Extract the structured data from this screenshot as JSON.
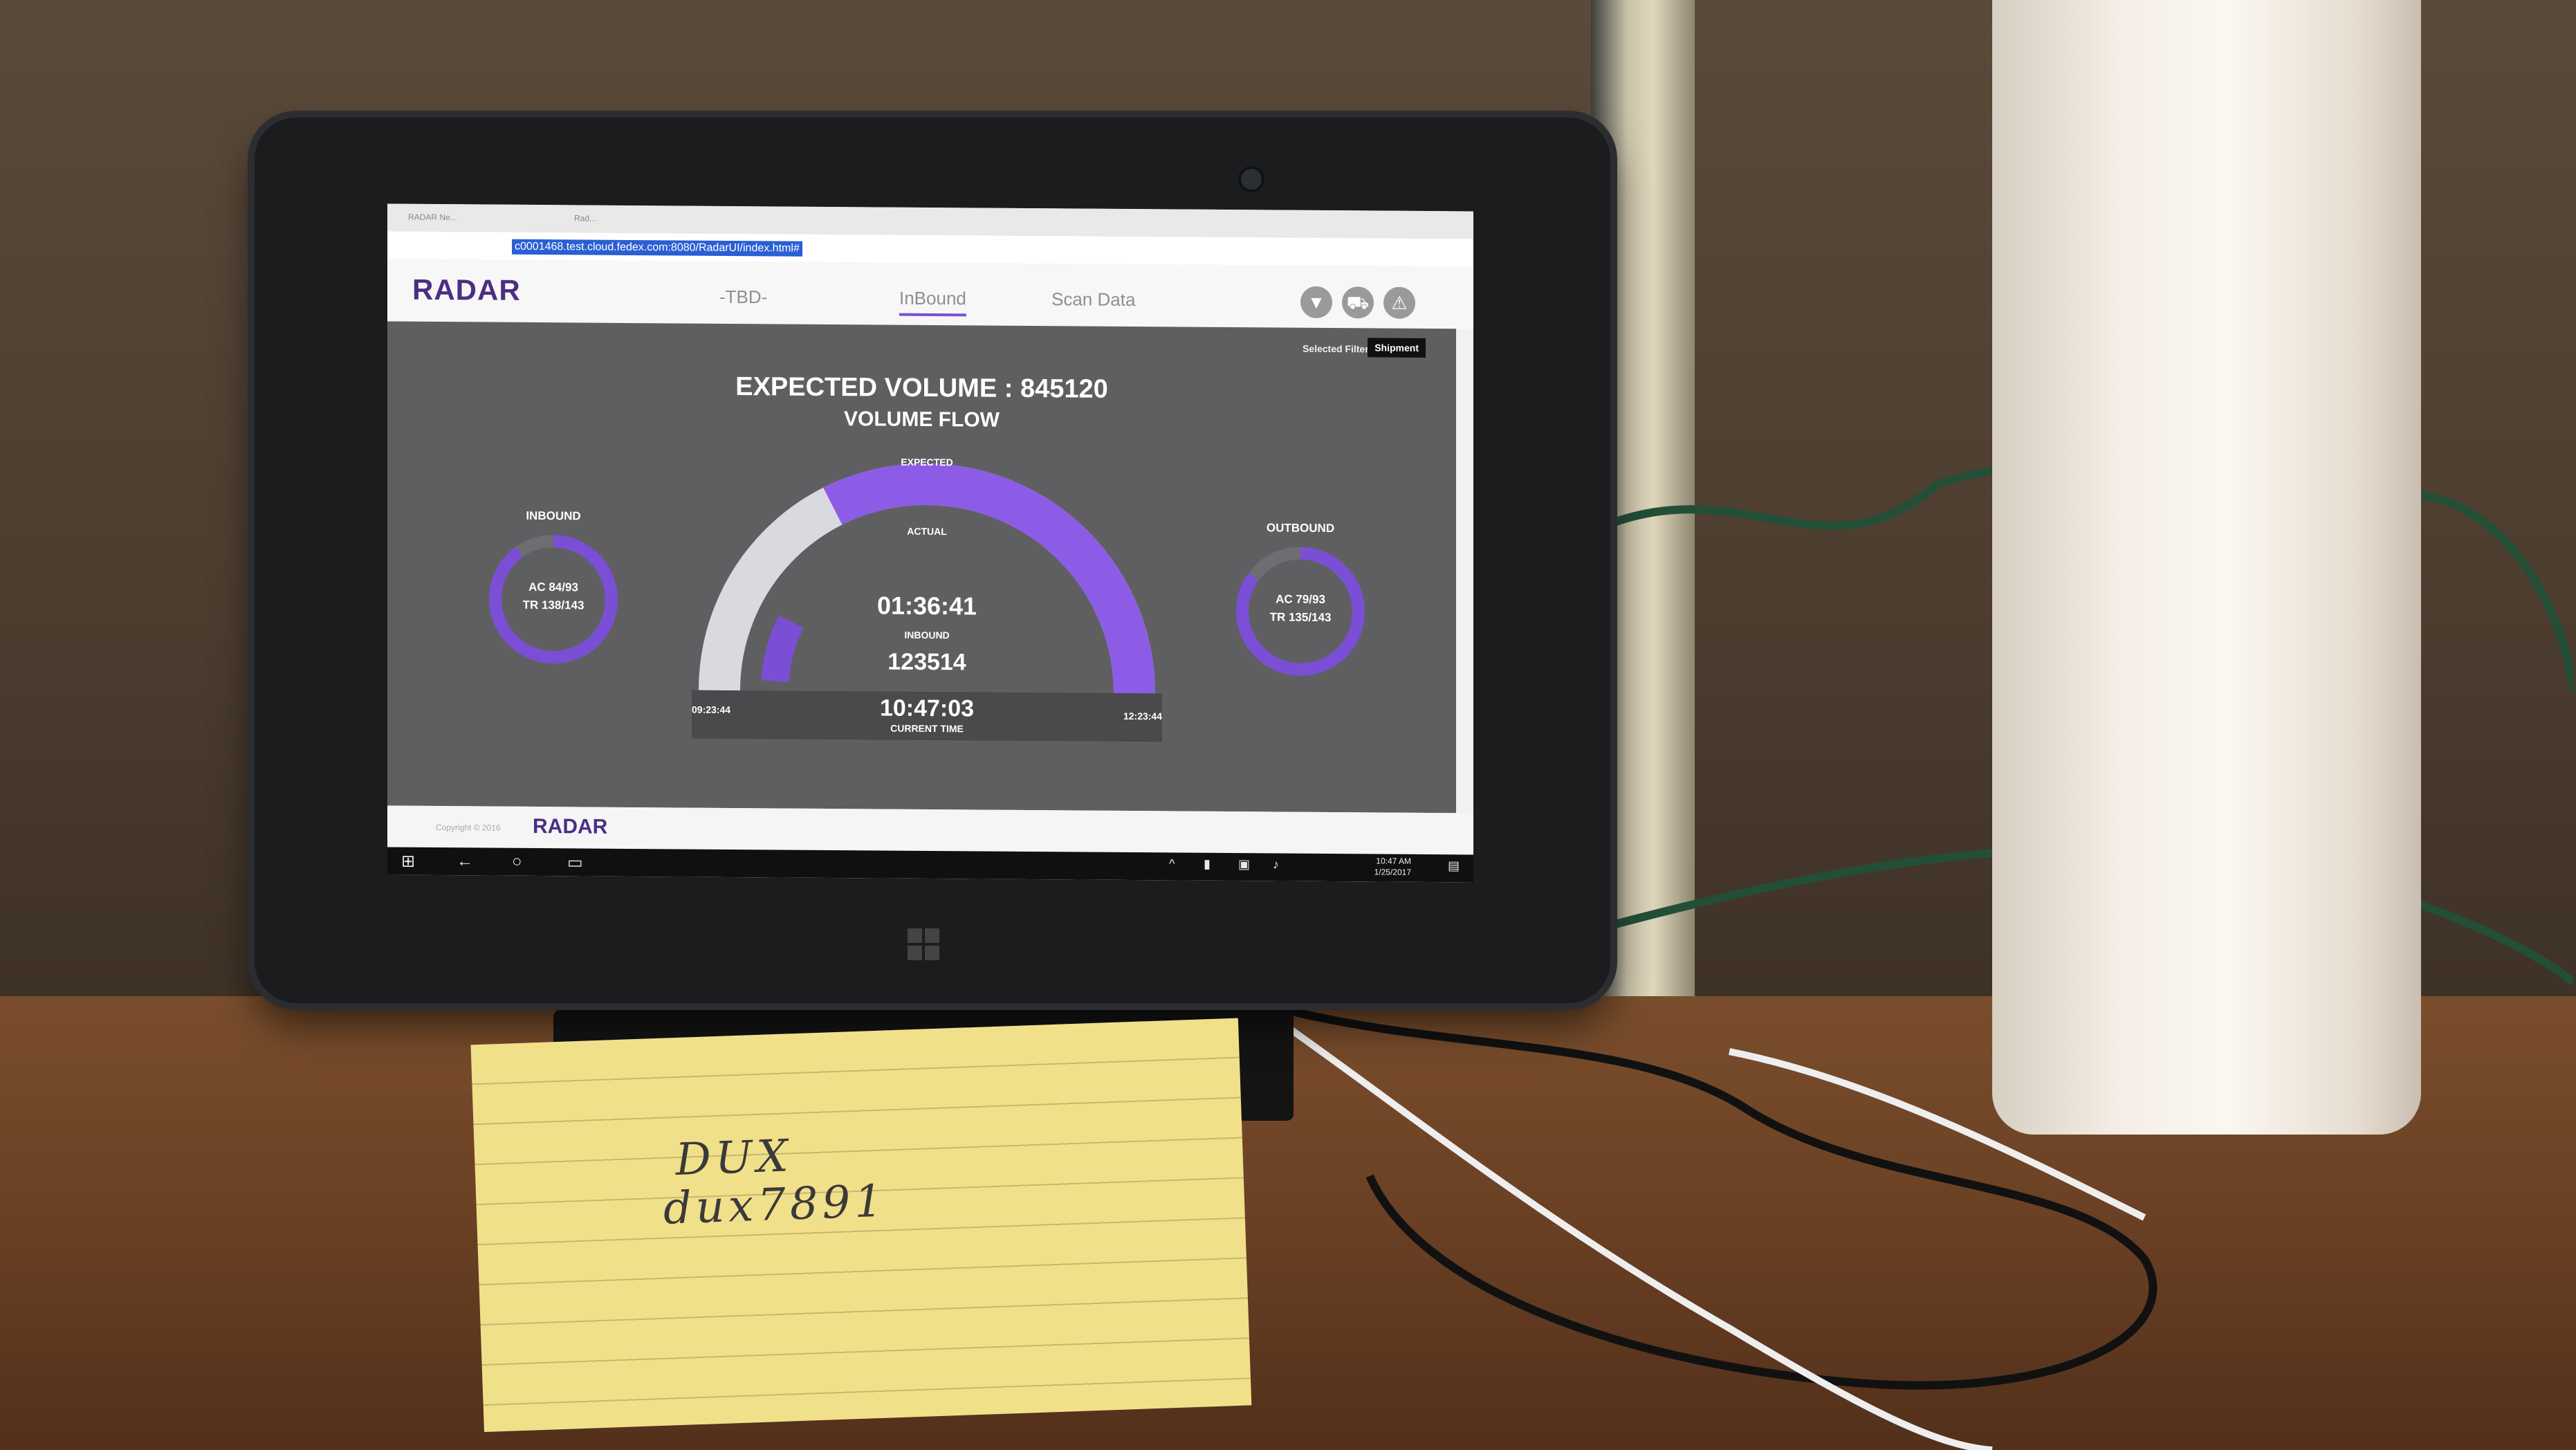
{
  "browser": {
    "tabs": [
      "RADAR Ne...",
      "Rad...",
      ""
    ],
    "url": "c0001468.test.cloud.fedex.com:8080/RadarUI/index.html#"
  },
  "app": {
    "logo": "RADAR",
    "nav": [
      "-TBD-",
      "InBound",
      "Scan Data"
    ],
    "active_nav": "InBound",
    "icons": [
      "filter-icon",
      "truck-icon",
      "warning-icon"
    ],
    "selected_filters_label": "Selected Filters :",
    "selected_filter": "Shipment"
  },
  "dashboard": {
    "expected_volume_text": "EXPECTED VOLUME : 845120",
    "volume_flow": "VOLUME FLOW",
    "inbound": {
      "title": "INBOUND",
      "ac": "AC 84/93",
      "tr": "TR 138/143",
      "progress": 0.9
    },
    "outbound": {
      "title": "OUTBOUND",
      "ac": "AC 79/93",
      "tr": "TR 135/143",
      "progress": 0.85
    },
    "gauge": {
      "expected_label": "EXPECTED",
      "actual_label": "ACTUAL",
      "elapsed": "01:36:41",
      "inbound_label": "INBOUND",
      "inbound_count": "123514",
      "current_time": "10:47:03",
      "current_time_label": "CURRENT TIME",
      "start_time": "09:23:44",
      "end_time": "12:23:44",
      "expected_fraction": 1.0,
      "actual_fraction": 0.15,
      "colors": {
        "expected": "#8c5ce6",
        "track": "#d9d9e0",
        "actual": "#7a4fd6"
      }
    }
  },
  "footer": {
    "copyright": "Copyright © 2016",
    "logo": "RADAR"
  },
  "taskbar": {
    "time": "10:47 AM",
    "date": "1/25/2017"
  },
  "note": {
    "line1": "DUX",
    "line2": "dux7891"
  }
}
